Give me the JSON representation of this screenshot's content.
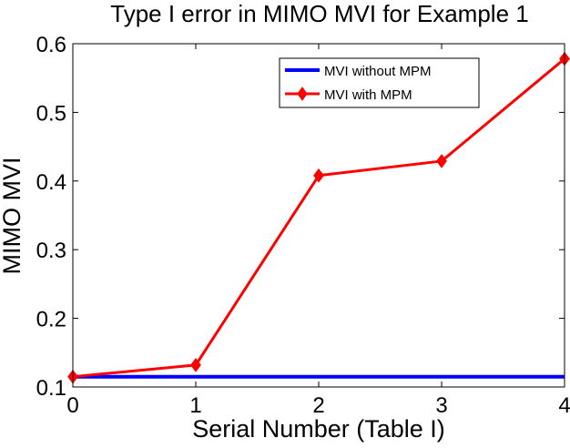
{
  "chart_data": {
    "type": "line",
    "title": "Type I error in MIMO MVI for Example 1",
    "xlabel": "Serial Number (Table I)",
    "ylabel": "MIMO MVI",
    "xlim": [
      0,
      4
    ],
    "ylim": [
      0.1,
      0.6
    ],
    "xticks": [
      "0",
      "1",
      "2",
      "3",
      "4"
    ],
    "yticks": [
      "0.1",
      "0.2",
      "0.3",
      "0.4",
      "0.5",
      "0.6"
    ],
    "grid": false,
    "legend_position": "top-right",
    "x": [
      0,
      1,
      2,
      3,
      4
    ],
    "series": [
      {
        "name": "MVI without MPM",
        "color": "#0000ff",
        "marker": "none",
        "values": [
          0.115,
          0.115,
          0.115,
          0.115,
          0.115
        ]
      },
      {
        "name": "MVI with MPM",
        "color": "#ff0000",
        "marker": "diamond",
        "values": [
          0.115,
          0.132,
          0.408,
          0.429,
          0.578
        ]
      }
    ]
  }
}
